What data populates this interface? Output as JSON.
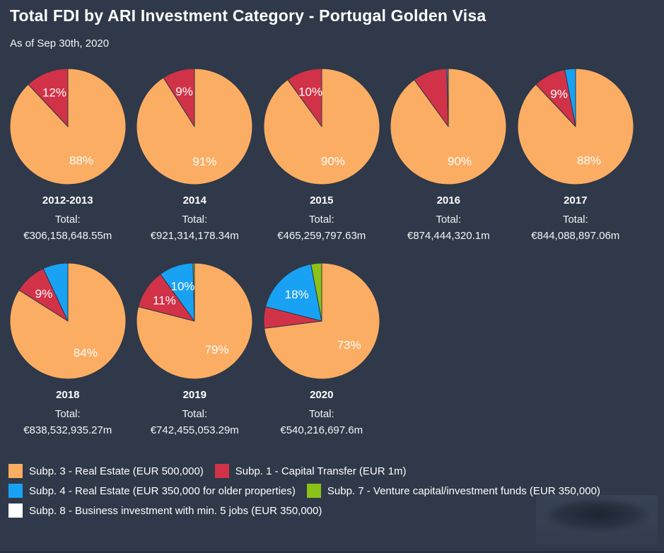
{
  "canvas": {
    "background": "#2F3949"
  },
  "chart_data": {
    "type": "pie",
    "title": "Total FDI by ARI Investment Category - Portugal Golden Visa",
    "subtitle": "As of Sep 30th, 2020",
    "legend_position": "bottom",
    "slice_start": "top-clockwise",
    "categories": [
      {
        "id": "subp3",
        "label": "Subp. 3 - Real Estate (EUR 500,000)",
        "color": "#FBAD63"
      },
      {
        "id": "subp1",
        "label": "Subp. 1 - Capital Transfer (EUR 1m)",
        "color": "#D23247"
      },
      {
        "id": "subp4",
        "label": "Subp. 4 - Real Estate (EUR 350,000 for older properties)",
        "color": "#19A2F3"
      },
      {
        "id": "subp7",
        "label": "Subp. 7 - Venture capital/investment funds (EUR 350,000)",
        "color": "#8AC217"
      },
      {
        "id": "subp8",
        "label": "Subp. 8 - Business investment with min. 5 jobs (EUR 350,000)",
        "color": "#FFFFFF"
      }
    ],
    "pies": [
      {
        "year": "2012-2013",
        "total_label": "Total:",
        "total_value": "€306,158,648.55m",
        "slices": [
          {
            "category": "subp3",
            "percent": 88,
            "display_label": "88%"
          },
          {
            "category": "subp1",
            "percent": 12,
            "display_label": "12%"
          }
        ]
      },
      {
        "year": "2014",
        "total_label": "Total:",
        "total_value": "€921,314,178.34m",
        "slices": [
          {
            "category": "subp3",
            "percent": 91,
            "display_label": "91%"
          },
          {
            "category": "subp1",
            "percent": 9,
            "display_label": "9%"
          }
        ]
      },
      {
        "year": "2015",
        "total_label": "Total:",
        "total_value": "€465,259,797.63m",
        "slices": [
          {
            "category": "subp3",
            "percent": 90,
            "display_label": "90%"
          },
          {
            "category": "subp1",
            "percent": 10,
            "display_label": "10%"
          }
        ]
      },
      {
        "year": "2016",
        "total_label": "Total:",
        "total_value": "€874,444,320.1m",
        "slices": [
          {
            "category": "subp3",
            "percent": 90,
            "display_label": "90%"
          },
          {
            "category": "subp1",
            "percent": 9.6,
            "display_label": null
          },
          {
            "category": "subp4",
            "percent": 0.4,
            "display_label": null
          }
        ]
      },
      {
        "year": "2017",
        "total_label": "Total:",
        "total_value": "€844,088,897.06m",
        "slices": [
          {
            "category": "subp3",
            "percent": 88,
            "display_label": "88%"
          },
          {
            "category": "subp1",
            "percent": 9,
            "display_label": "9%"
          },
          {
            "category": "subp4",
            "percent": 3,
            "display_label": null
          }
        ]
      },
      {
        "year": "2018",
        "total_label": "Total:",
        "total_value": "€838,532,935.27m",
        "slices": [
          {
            "category": "subp3",
            "percent": 84,
            "display_label": "84%"
          },
          {
            "category": "subp1",
            "percent": 9,
            "display_label": "9%"
          },
          {
            "category": "subp4",
            "percent": 7,
            "display_label": null
          }
        ]
      },
      {
        "year": "2019",
        "total_label": "Total:",
        "total_value": "€742,455,053.29m",
        "slices": [
          {
            "category": "subp3",
            "percent": 79,
            "display_label": "79%"
          },
          {
            "category": "subp1",
            "percent": 11,
            "display_label": "11%"
          },
          {
            "category": "subp4",
            "percent": 9.6,
            "display_label": "10%"
          },
          {
            "category": "subp7",
            "percent": 0.4,
            "display_label": null
          }
        ]
      },
      {
        "year": "2020",
        "total_label": "Total:",
        "total_value": "€540,216,697.6m",
        "slices": [
          {
            "category": "subp3",
            "percent": 73,
            "display_label": "73%"
          },
          {
            "category": "subp1",
            "percent": 6,
            "display_label": null
          },
          {
            "category": "subp4",
            "percent": 18,
            "display_label": "18%"
          },
          {
            "category": "subp7",
            "percent": 3,
            "display_label": null
          }
        ]
      }
    ],
    "rows": [
      5,
      3
    ]
  }
}
